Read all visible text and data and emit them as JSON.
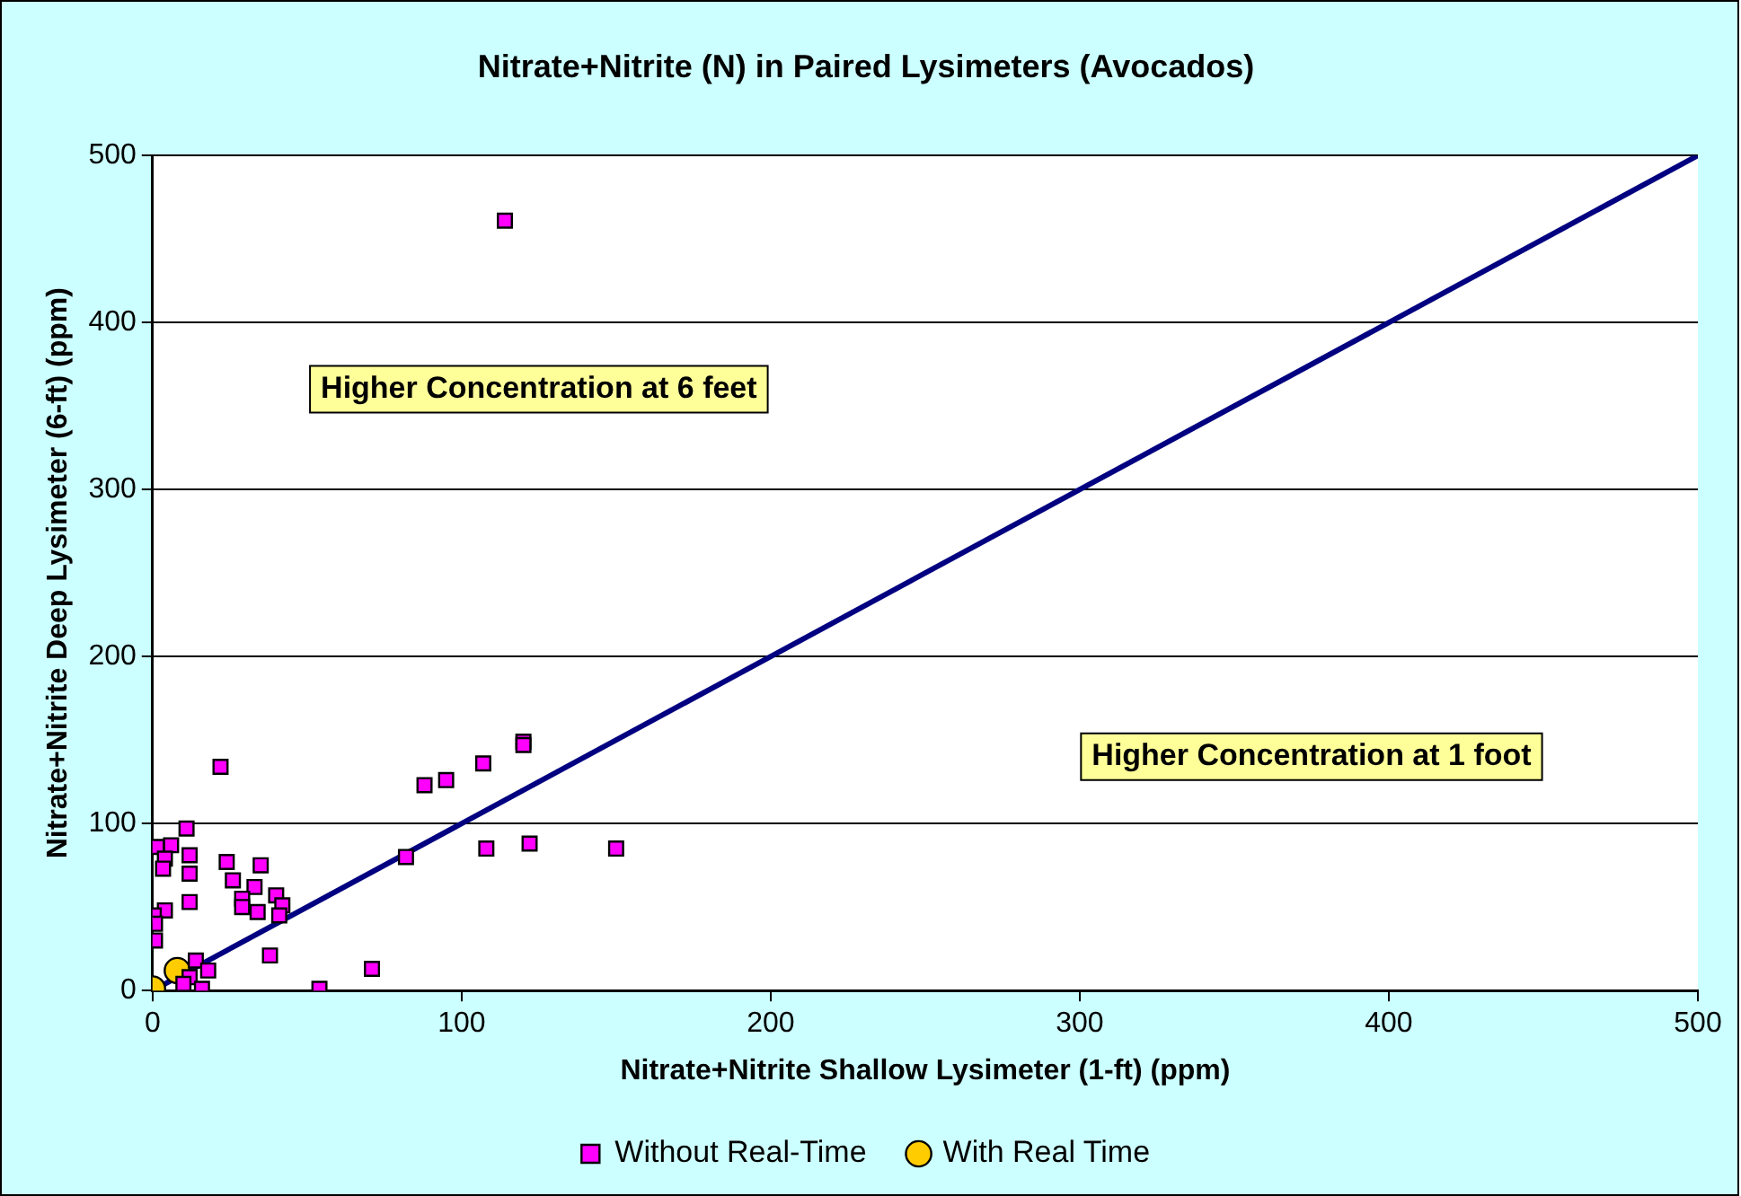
{
  "chart_data": {
    "type": "scatter",
    "title": "Nitrate+Nitrite (N) in Paired Lysimeters (Avocados)",
    "xlabel": "Nitrate+Nitrite Shallow Lysimeter (1-ft) (ppm)",
    "ylabel": "Nitrate+Nitrite Deep Lysimeter (6-ft) (ppm)",
    "xlim": [
      0,
      500
    ],
    "ylim": [
      0,
      500
    ],
    "xticks": [
      0,
      100,
      200,
      300,
      400,
      500
    ],
    "yticks": [
      0,
      100,
      200,
      300,
      400,
      500
    ],
    "grid": "y",
    "legend": "bottom",
    "annotations": [
      "Higher Concentration at 6 feet",
      "Higher Concentration at 1 foot"
    ],
    "series": [
      {
        "name": "Without Real-Time",
        "color": "#ff00ff",
        "marker": "square",
        "x": [
          114,
          22,
          88,
          95,
          107,
          120,
          120,
          82,
          108,
          122,
          150,
          71,
          54,
          38,
          11,
          1.4,
          6,
          12,
          4,
          12,
          3.4,
          24,
          35,
          26,
          33,
          29,
          29,
          34,
          40,
          42,
          41,
          12,
          4,
          0.4,
          0.8,
          0.8,
          14,
          18,
          12,
          16,
          10
        ],
        "values": [
          461,
          134,
          123,
          126,
          136,
          149,
          147,
          80,
          85,
          88,
          85,
          13,
          1,
          21,
          97,
          86,
          87,
          81,
          79,
          70,
          73,
          77,
          75,
          66,
          62,
          55,
          50,
          47,
          57,
          51,
          45,
          53,
          48,
          45,
          40,
          30,
          18,
          12,
          8,
          1,
          4
        ]
      },
      {
        "name": "With Real Time",
        "color": "#ffcc00",
        "marker": "circle",
        "x": [
          0,
          8
        ],
        "values": [
          1,
          12
        ]
      },
      {
        "type": "line",
        "color": "#000080",
        "marker": "none",
        "x": [
          0,
          500
        ],
        "values": [
          0,
          500
        ]
      }
    ]
  }
}
